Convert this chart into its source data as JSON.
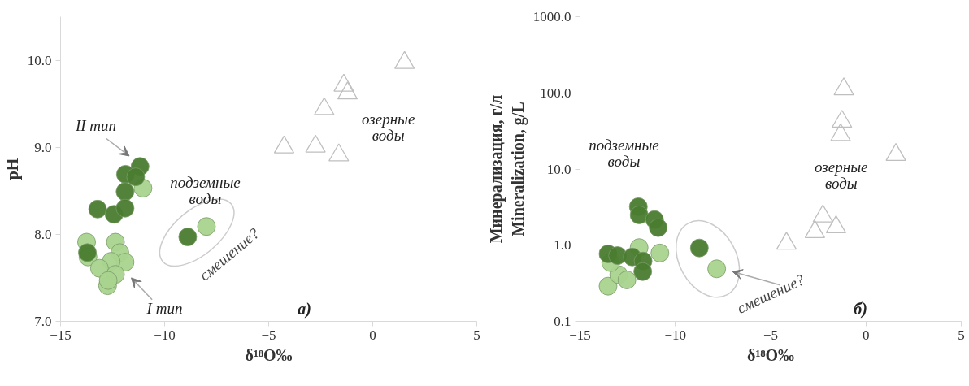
{
  "chart_data": [
    {
      "type": "scatter",
      "xlabel": "δ¹⁸O‰",
      "ylabel": "pH",
      "xlim": [
        -15,
        5
      ],
      "xticks": [
        -15,
        -10,
        -5,
        0,
        5
      ],
      "ylim": [
        7,
        10.5
      ],
      "yticks": [
        {
          "value": 7,
          "label": "7.0"
        },
        {
          "value": 8,
          "label": "8.0"
        },
        {
          "value": 9,
          "label": "9.0"
        },
        {
          "value": 10,
          "label": "10.0"
        }
      ],
      "grid": false,
      "series": [
        {
          "color": "#a9d48e",
          "marker": "circle",
          "x": [
            -11.04,
            -7.99,
            -13.75,
            -13.68,
            -12.36,
            -12.15,
            -11.9,
            -12.57,
            -13.13,
            -12.36,
            -12.74,
            -12.71
          ],
          "values": [
            8.53,
            8.09,
            7.91,
            7.74,
            7.91,
            7.79,
            7.68,
            7.69,
            7.61,
            7.54,
            7.41,
            7.47
          ]
        },
        {
          "color": "#4a7c2f",
          "marker": "circle",
          "x": [
            -11.18,
            -11.88,
            -11.39,
            -11.9,
            -13.22,
            -12.43,
            -11.9,
            -13.71,
            -8.89
          ],
          "values": [
            8.78,
            8.69,
            8.66,
            8.49,
            8.29,
            8.23,
            8.3,
            7.79,
            7.97
          ]
        },
        {
          "color": "#bfbfbf",
          "marker": "triangle",
          "x": [
            1.53,
            -1.39,
            -1.21,
            -2.33,
            -4.26,
            -2.75,
            -1.63
          ],
          "values": [
            9.97,
            9.71,
            9.62,
            9.44,
            9.0,
            9.01,
            8.91
          ]
        }
      ],
      "annotations": [
        "II тип",
        "I тип",
        "подземные воды",
        "озерные воды",
        "смешение?",
        "а)"
      ]
    },
    {
      "type": "scatter",
      "xlabel": "δ¹⁸O‰",
      "ylabel": "Минерализация, г/л\nMineralization, g/L",
      "log": "y",
      "xlim": [
        -15,
        5
      ],
      "xticks": [
        -15,
        -10,
        -5,
        0,
        5
      ],
      "ylim": [
        0.1,
        1000
      ],
      "yticks": [
        {
          "value": 0.1,
          "label": "0.1"
        },
        {
          "value": 1,
          "label": "1.0"
        },
        {
          "value": 10,
          "label": "10.0"
        },
        {
          "value": 100,
          "label": "100.0"
        },
        {
          "value": 1000,
          "label": "1000.0"
        }
      ],
      "grid": false,
      "series": [
        {
          "color": "#a9d48e",
          "marker": "circle",
          "x": [
            -11.9,
            -10.81,
            -7.83,
            -13.53,
            -12.97,
            -12.54,
            -13.39
          ],
          "values": [
            0.93,
            0.79,
            0.49,
            0.29,
            0.41,
            0.35,
            0.59
          ]
        },
        {
          "color": "#4a7c2f",
          "marker": "circle",
          "x": [
            -11.94,
            -11.9,
            -11.09,
            -10.9,
            -13.53,
            -13.03,
            -12.26,
            -11.69,
            -11.71,
            -8.74
          ],
          "values": [
            3.2,
            2.5,
            2.17,
            1.7,
            0.77,
            0.73,
            0.7,
            0.62,
            0.45,
            0.92
          ]
        },
        {
          "color": "#bfbfbf",
          "marker": "triangle",
          "x": [
            -1.16,
            -1.26,
            -1.33,
            1.57,
            -2.26,
            -2.68,
            -1.57,
            -4.17
          ],
          "values": [
            112,
            42,
            28,
            15.4,
            2.4,
            1.49,
            1.73,
            1.05
          ]
        }
      ],
      "annotations": [
        "подземные воды",
        "озерные воды",
        "смешение?",
        "б)"
      ]
    }
  ]
}
